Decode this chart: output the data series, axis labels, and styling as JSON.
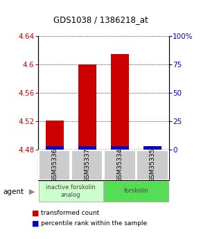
{
  "title": "GDS1038 / 1386218_at",
  "samples": [
    "GSM35336",
    "GSM35337",
    "GSM35334",
    "GSM35335"
  ],
  "red_values": [
    4.521,
    4.6,
    4.614,
    4.483
  ],
  "blue_values": [
    4.482,
    4.482,
    4.483,
    4.482
  ],
  "ymin": 4.48,
  "ymax": 4.64,
  "yticks_left": [
    4.48,
    4.52,
    4.56,
    4.6,
    4.64
  ],
  "yticks_right": [
    0,
    25,
    50,
    75,
    100
  ],
  "yticks_right_labels": [
    "0",
    "25",
    "50",
    "75",
    "100%"
  ],
  "groups": [
    {
      "label": "inactive forskolin\nanalog",
      "color": "#ccffcc",
      "start": 0,
      "end": 2
    },
    {
      "label": "forskolin",
      "color": "#55dd55",
      "start": 2,
      "end": 4
    }
  ],
  "bar_width": 0.55,
  "red_color": "#cc0000",
  "blue_color": "#0000cc",
  "left_tick_color": "#cc0000",
  "right_tick_color": "#0000cc",
  "agent_label": "agent",
  "legend_red": "transformed count",
  "legend_blue": "percentile rank within the sample",
  "sample_bg": "#cccccc",
  "grid_color": "#000000"
}
